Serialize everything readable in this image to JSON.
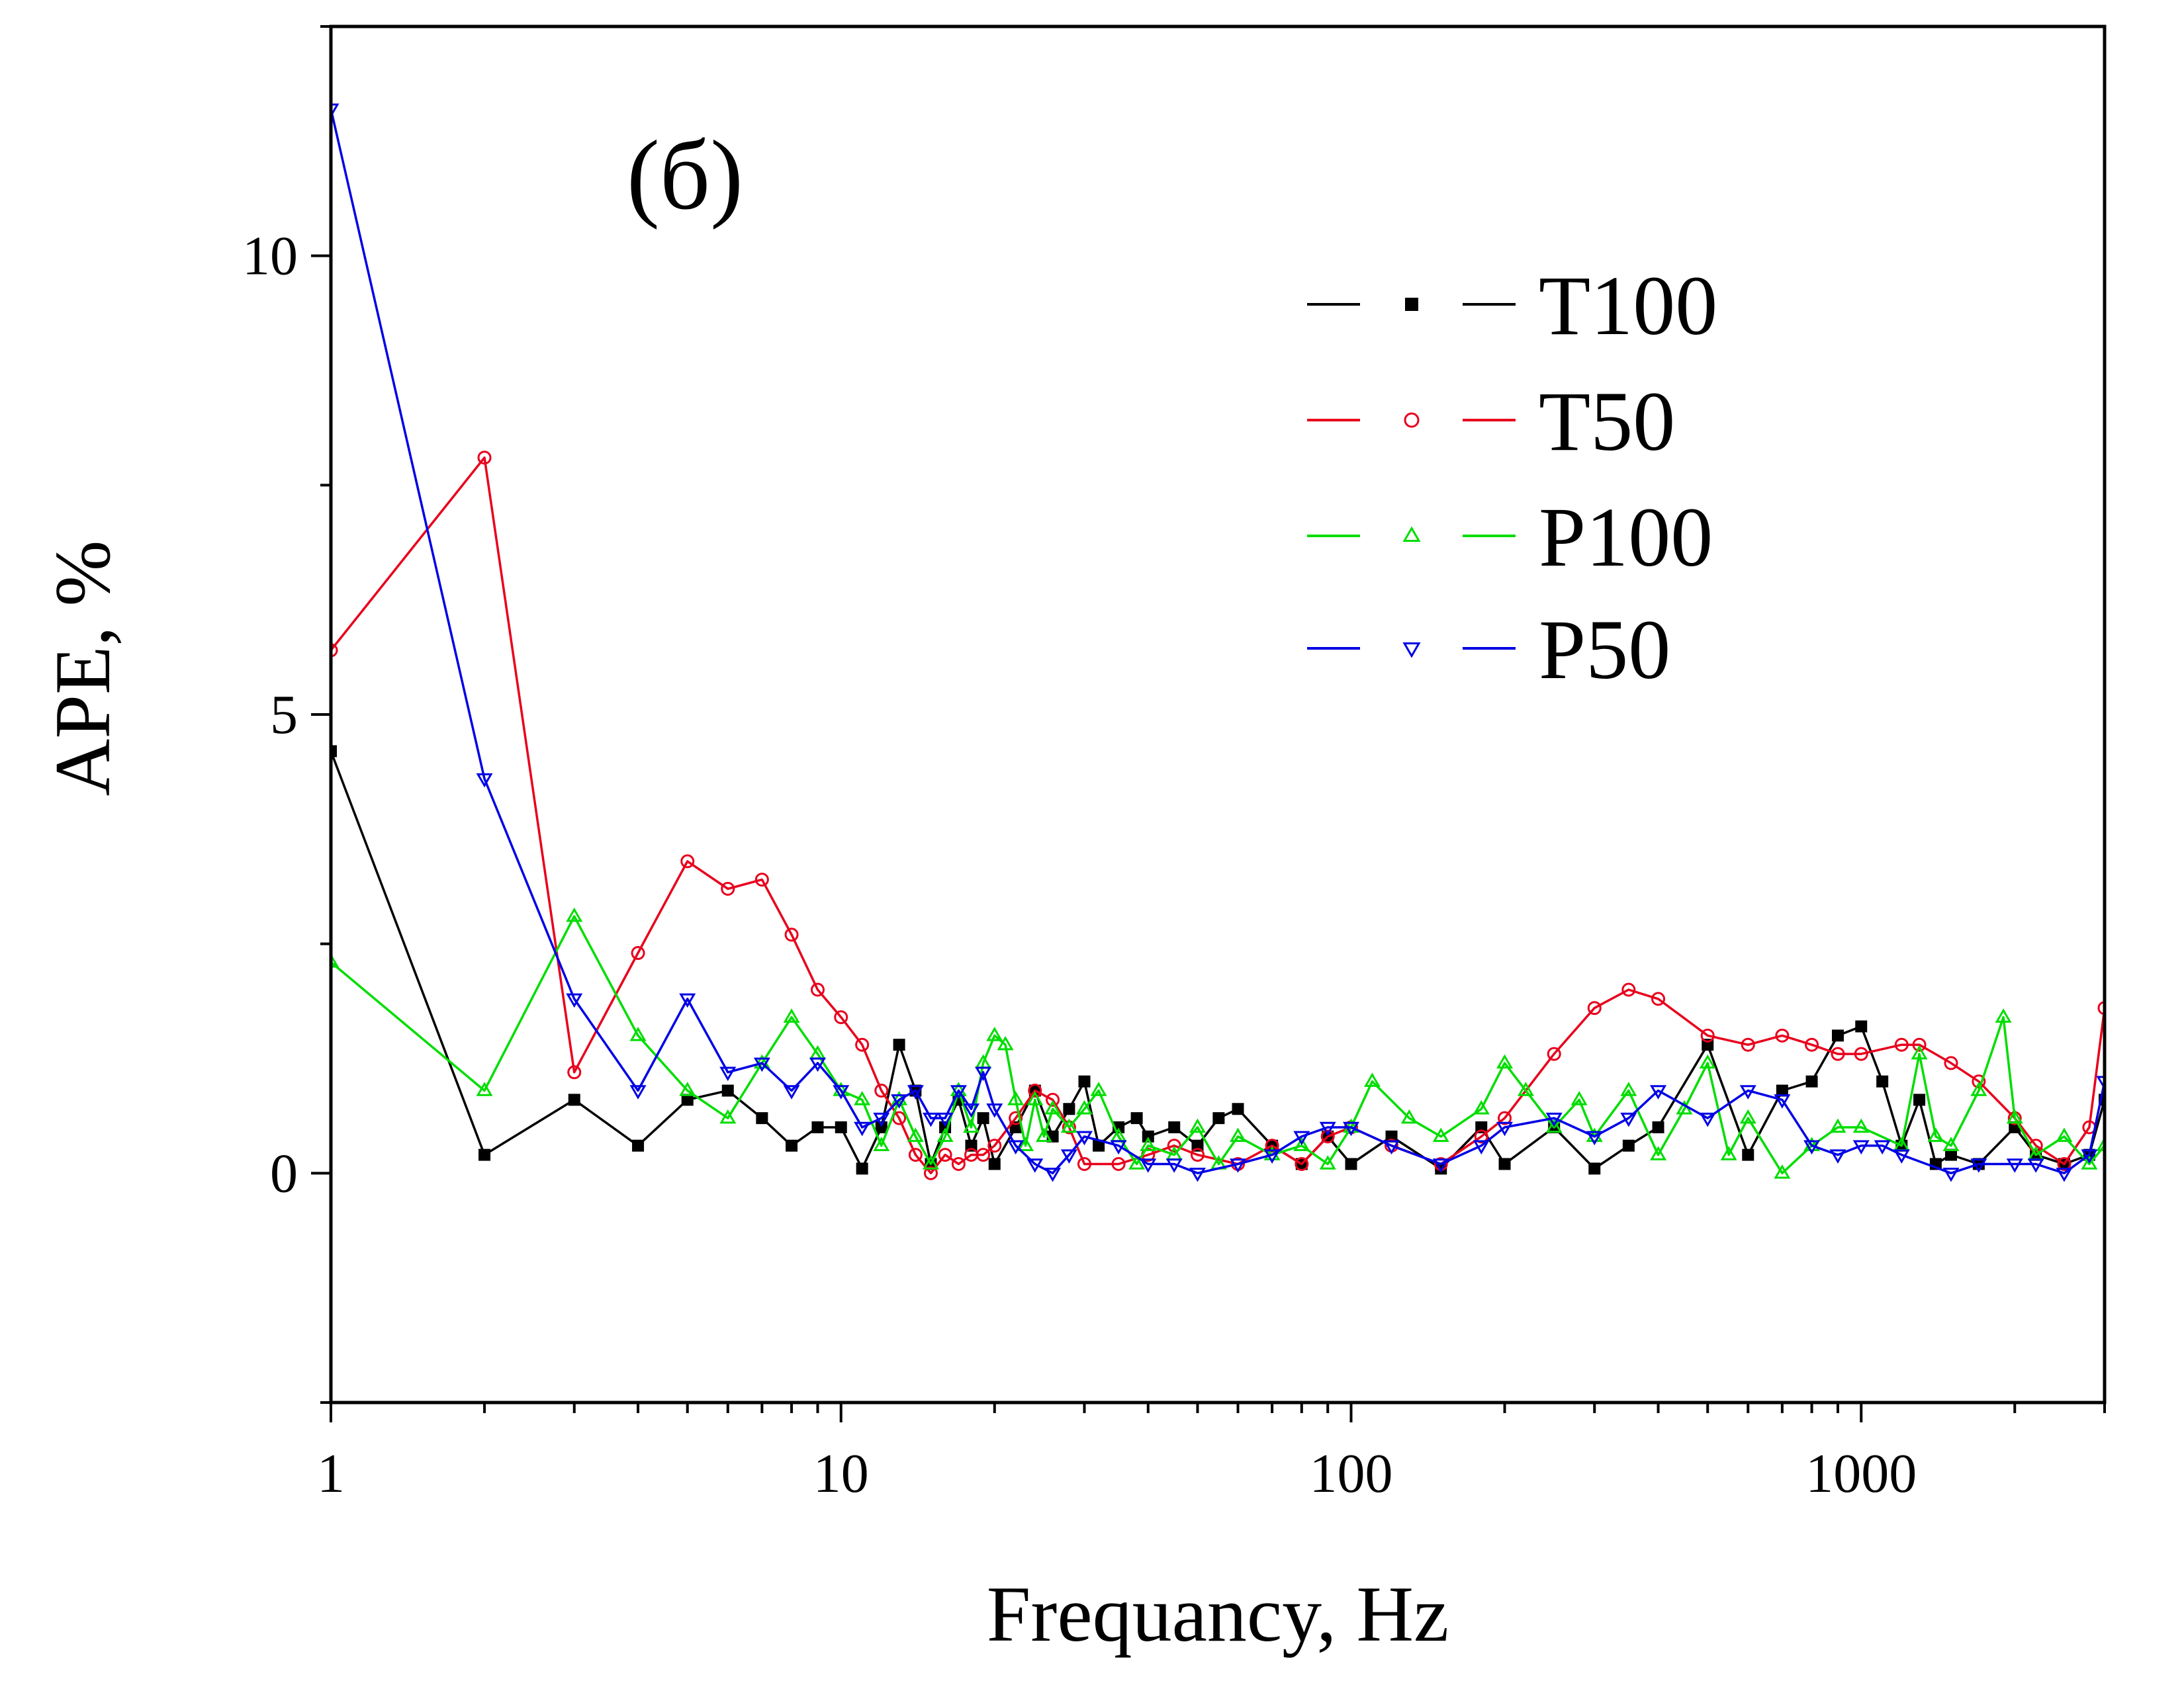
{
  "chart_data": {
    "type": "line",
    "panel_label": "(б)",
    "xlabel": "Frequancy, Hz",
    "ylabel": "APE, %",
    "xscale": "log",
    "xlim": [
      1,
      3000
    ],
    "ylim": [
      -2.5,
      12.5
    ],
    "xticks": [
      {
        "value": 1,
        "label": "1"
      },
      {
        "value": 10,
        "label": "10"
      },
      {
        "value": 100,
        "label": "100"
      },
      {
        "value": 1000,
        "label": "1000"
      }
    ],
    "yticks": [
      {
        "value": 0,
        "label": "0"
      },
      {
        "value": 5,
        "label": "5"
      },
      {
        "value": 10,
        "label": "10"
      }
    ],
    "grid": false,
    "legend_position": "top-right",
    "series": [
      {
        "name": "T100",
        "color": "#000000",
        "marker": "square",
        "x": [
          1,
          2,
          3,
          4,
          5,
          6,
          7,
          8,
          9,
          10,
          11,
          12,
          13,
          14,
          15,
          16,
          17,
          18,
          19,
          20,
          22,
          24,
          26,
          28,
          30,
          32,
          35,
          38,
          40,
          45,
          50,
          55,
          60,
          70,
          80,
          90,
          100,
          120,
          150,
          180,
          200,
          250,
          300,
          350,
          400,
          500,
          600,
          700,
          800,
          900,
          1000,
          1100,
          1200,
          1300,
          1400,
          1500,
          1700,
          2000,
          2200,
          2500,
          2800,
          3000
        ],
        "y": [
          4.6,
          0.2,
          0.8,
          0.3,
          0.8,
          0.9,
          0.6,
          0.3,
          0.5,
          0.5,
          0.05,
          0.5,
          1.4,
          0.9,
          0.1,
          0.5,
          0.8,
          0.3,
          0.6,
          0.1,
          0.5,
          0.9,
          0.4,
          0.7,
          1.0,
          0.3,
          0.5,
          0.6,
          0.4,
          0.5,
          0.3,
          0.6,
          0.7,
          0.3,
          0.1,
          0.4,
          0.1,
          0.4,
          0.05,
          0.5,
          0.1,
          0.5,
          0.05,
          0.3,
          0.5,
          1.4,
          0.2,
          0.9,
          1.0,
          1.5,
          1.6,
          1.0,
          0.3,
          0.8,
          0.1,
          0.2,
          0.1,
          0.5,
          0.2,
          0.1,
          0.2,
          0.8
        ]
      },
      {
        "name": "T50",
        "color": "#e8001c",
        "marker": "circle",
        "x": [
          1,
          2,
          3,
          4,
          5,
          6,
          7,
          8,
          9,
          10,
          11,
          12,
          13,
          14,
          15,
          16,
          17,
          18,
          19,
          20,
          22,
          24,
          26,
          28,
          30,
          35,
          40,
          45,
          50,
          60,
          70,
          80,
          90,
          100,
          120,
          150,
          180,
          200,
          250,
          300,
          350,
          400,
          500,
          600,
          700,
          800,
          900,
          1000,
          1200,
          1300,
          1500,
          1700,
          2000,
          2200,
          2500,
          2800,
          3000
        ],
        "y": [
          5.7,
          7.8,
          1.1,
          2.4,
          3.4,
          3.1,
          3.2,
          2.6,
          2.0,
          1.7,
          1.4,
          0.9,
          0.6,
          0.2,
          0.0,
          0.2,
          0.1,
          0.2,
          0.2,
          0.3,
          0.6,
          0.9,
          0.8,
          0.5,
          0.1,
          0.1,
          0.2,
          0.3,
          0.2,
          0.1,
          0.3,
          0.1,
          0.4,
          0.5,
          0.3,
          0.1,
          0.4,
          0.6,
          1.3,
          1.8,
          2.0,
          1.9,
          1.5,
          1.4,
          1.5,
          1.4,
          1.3,
          1.3,
          1.4,
          1.4,
          1.2,
          1.0,
          0.6,
          0.3,
          0.1,
          0.5,
          1.8
        ]
      },
      {
        "name": "P100",
        "color": "#00dd00",
        "marker": "triangle-up",
        "x": [
          1,
          2,
          3,
          4,
          5,
          6,
          7,
          8,
          9,
          10,
          11,
          12,
          13,
          14,
          15,
          16,
          17,
          18,
          19,
          20,
          21,
          22,
          23,
          24,
          25,
          26,
          28,
          30,
          32,
          35,
          38,
          40,
          45,
          50,
          55,
          60,
          70,
          80,
          90,
          100,
          110,
          130,
          150,
          180,
          200,
          220,
          250,
          280,
          300,
          350,
          400,
          450,
          500,
          550,
          600,
          700,
          800,
          900,
          1000,
          1200,
          1300,
          1400,
          1500,
          1700,
          1900,
          2000,
          2200,
          2500,
          2800,
          3000
        ],
        "y": [
          2.3,
          0.9,
          2.8,
          1.5,
          0.9,
          0.6,
          1.2,
          1.7,
          1.3,
          0.9,
          0.8,
          0.3,
          0.8,
          0.4,
          0.1,
          0.4,
          0.9,
          0.5,
          1.2,
          1.5,
          1.4,
          0.8,
          0.3,
          0.8,
          0.4,
          0.7,
          0.5,
          0.7,
          0.9,
          0.4,
          0.1,
          0.3,
          0.2,
          0.5,
          0.1,
          0.4,
          0.2,
          0.3,
          0.1,
          0.5,
          1.0,
          0.6,
          0.4,
          0.7,
          1.2,
          0.9,
          0.5,
          0.8,
          0.4,
          0.9,
          0.2,
          0.7,
          1.2,
          0.2,
          0.6,
          0.0,
          0.3,
          0.5,
          0.5,
          0.3,
          1.3,
          0.4,
          0.3,
          0.9,
          1.7,
          0.6,
          0.2,
          0.4,
          0.1,
          0.3
        ]
      },
      {
        "name": "P50",
        "color": "#0000e6",
        "marker": "triangle-down",
        "x": [
          1,
          2,
          3,
          4,
          5,
          6,
          7,
          8,
          9,
          10,
          11,
          12,
          13,
          14,
          15,
          16,
          17,
          18,
          19,
          20,
          22,
          24,
          26,
          28,
          30,
          35,
          40,
          45,
          50,
          60,
          70,
          80,
          90,
          100,
          120,
          150,
          180,
          200,
          250,
          300,
          350,
          400,
          500,
          600,
          700,
          800,
          900,
          1000,
          1100,
          1200,
          1500,
          1700,
          2000,
          2200,
          2500,
          2800,
          3000
        ],
        "y": [
          11.6,
          4.3,
          1.9,
          0.9,
          1.9,
          1.1,
          1.2,
          0.9,
          1.2,
          0.9,
          0.5,
          0.6,
          0.8,
          0.9,
          0.6,
          0.6,
          0.9,
          0.7,
          1.1,
          0.7,
          0.3,
          0.1,
          0.0,
          0.2,
          0.4,
          0.3,
          0.1,
          0.1,
          0.0,
          0.1,
          0.2,
          0.4,
          0.5,
          0.5,
          0.3,
          0.1,
          0.3,
          0.5,
          0.6,
          0.4,
          0.6,
          0.9,
          0.6,
          0.9,
          0.8,
          0.3,
          0.2,
          0.3,
          0.3,
          0.2,
          0.0,
          0.1,
          0.1,
          0.1,
          0.0,
          0.2,
          1.0
        ]
      }
    ]
  }
}
